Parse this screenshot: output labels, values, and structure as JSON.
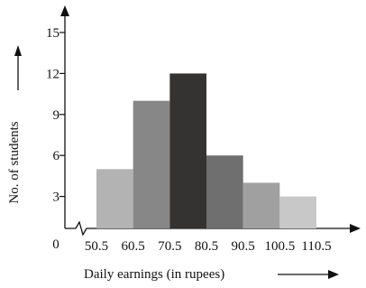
{
  "chart_data": {
    "type": "histogram",
    "xlabel": "Daily earnings (in rupees)",
    "ylabel": "No. of students",
    "bins": [
      50.5,
      60.5,
      70.5,
      80.5,
      90.5,
      100.5,
      110.5
    ],
    "values": [
      5,
      10,
      12,
      6,
      4,
      3
    ],
    "colors": [
      "#b3b3b3",
      "#878787",
      "#353331",
      "#6f6f6f",
      "#a0a0a0",
      "#c8c8c8"
    ],
    "ylim": [
      0,
      15
    ],
    "yticks": [
      0,
      3,
      6,
      9,
      12,
      15
    ]
  }
}
